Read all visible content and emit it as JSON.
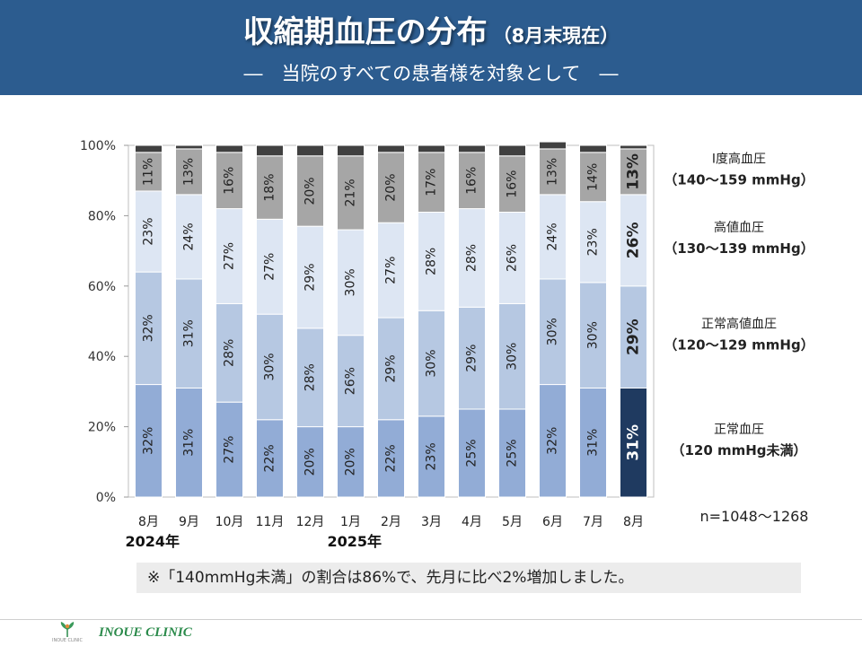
{
  "header": {
    "title": "収縮期血圧の分布",
    "title_sub": "（8月末現在）",
    "subtitle": "―　当院のすべての患者様を対象として　―"
  },
  "colors": {
    "header_bg": "#2c5c8f",
    "normal": "#92acd6",
    "normal_high": "#b6c8e2",
    "high_normal": "#dde6f3",
    "stage1": "#a6a6a6",
    "top": "#404040",
    "latest_normal": "#1f3a60"
  },
  "chart_data": {
    "type": "bar",
    "stacked": true,
    "ylim": [
      0,
      100
    ],
    "yticks": [
      "0%",
      "20%",
      "40%",
      "60%",
      "80%",
      "100%"
    ],
    "categories": [
      "8月",
      "9月",
      "10月",
      "11月",
      "12月",
      "1月",
      "2月",
      "3月",
      "4月",
      "5月",
      "6月",
      "7月",
      "8月"
    ],
    "year_labels": [
      {
        "category_index": 0,
        "text": "2024年"
      },
      {
        "category_index": 5,
        "text": "2025年"
      }
    ],
    "series": [
      {
        "name": "正常血圧",
        "values": [
          32,
          31,
          27,
          22,
          20,
          20,
          22,
          23,
          25,
          25,
          32,
          31,
          31
        ]
      },
      {
        "name": "正常高値血圧",
        "values": [
          32,
          31,
          28,
          30,
          28,
          26,
          29,
          30,
          29,
          30,
          30,
          30,
          29
        ]
      },
      {
        "name": "高値血圧",
        "values": [
          23,
          24,
          27,
          27,
          29,
          30,
          27,
          28,
          28,
          26,
          24,
          23,
          26
        ]
      },
      {
        "name": "Ⅰ度高血圧",
        "values": [
          11,
          13,
          16,
          18,
          20,
          21,
          20,
          17,
          16,
          16,
          13,
          14,
          13
        ]
      },
      {
        "name": "",
        "values": [
          2,
          1,
          2,
          3,
          3,
          3,
          2,
          2,
          2,
          3,
          2,
          2,
          1
        ]
      }
    ],
    "legend": [
      {
        "series": "Ⅰ度高血圧",
        "name": "Ⅰ度高血圧",
        "range": "（140～159 mmHg）"
      },
      {
        "series": "高値血圧",
        "name": "高値血圧",
        "range": "（130～139 mmHg）"
      },
      {
        "series": "正常高値血圧",
        "name": "正常高値血圧",
        "range": "（120～129 mmHg）"
      },
      {
        "series": "正常血圧",
        "name": "正常血圧",
        "range": "（120 mmHg未満）"
      }
    ],
    "n_label": "n=1048～1268"
  },
  "note": "※「140mmHg未満」の割合は86%で、先月に比べ2%増加しました。",
  "footer": {
    "logo_text": "INOUE CLINIC",
    "logo_small": "INOUE CLINIC"
  }
}
